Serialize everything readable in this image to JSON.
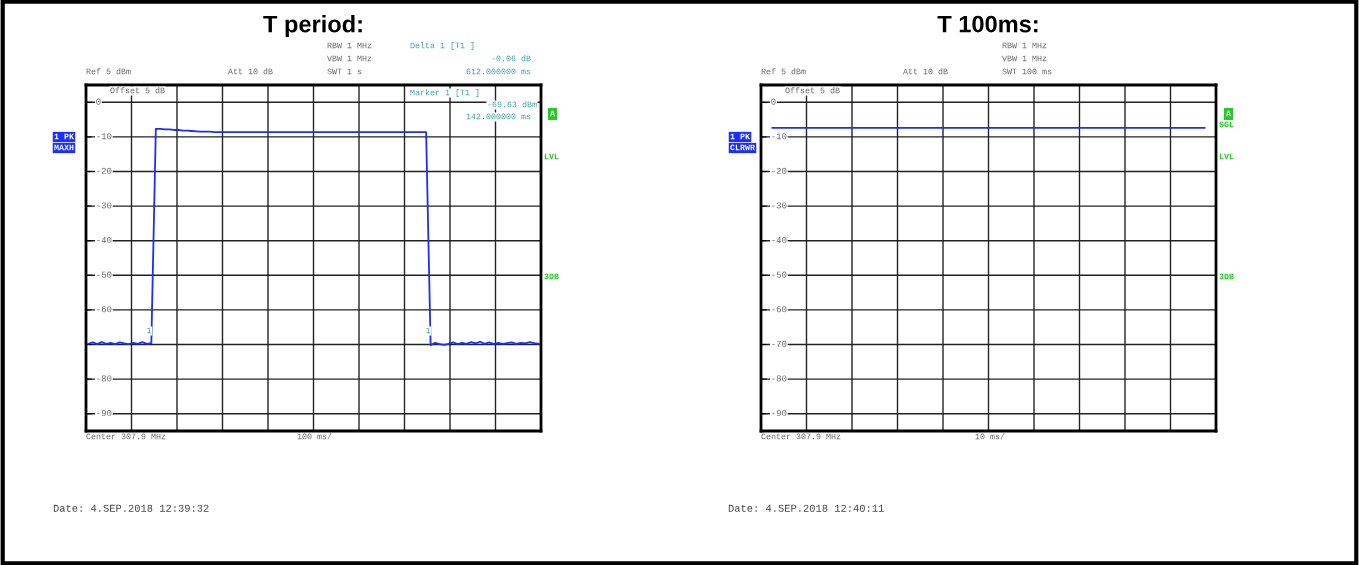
{
  "chart_data": [
    {
      "type": "line",
      "title": "T period:",
      "categories": [
        null,
        null,
        null,
        null,
        null,
        null,
        null,
        null,
        null,
        null,
        null,
        null,
        null,
        null,
        null,
        null,
        null,
        null,
        null,
        null,
        null,
        null,
        null,
        null,
        null,
        null,
        null,
        null,
        null,
        null,
        null,
        null,
        null,
        null,
        null,
        null,
        null,
        null,
        null,
        null,
        null,
        null,
        null,
        null,
        null,
        null,
        null,
        null,
        null,
        null,
        null,
        null,
        null,
        null,
        null,
        null,
        null,
        null,
        null,
        null,
        null,
        null,
        null,
        null,
        null,
        null,
        null,
        null,
        null,
        null,
        null,
        null,
        null,
        null,
        null,
        null,
        null,
        null,
        null,
        null,
        null,
        null,
        null,
        null,
        null,
        null,
        null,
        null,
        null,
        null,
        null,
        null,
        null,
        null,
        null,
        null,
        null,
        null,
        null,
        null,
        null
      ],
      "ylim": [
        -95,
        5
      ],
      "yticks": [
        0,
        -10,
        -20,
        -30,
        -40,
        -50,
        -60,
        {
          "value": -70,
          "label": null
        },
        -80,
        -90
      ],
      "grid": true,
      "marker": "none",
      "line_style": "solid",
      "series": [
        {
          "color": "#1a2eff",
          "values": [
            -69.8,
            -69.4,
            -69.9,
            -69.3,
            -69.8,
            -69.5,
            -69.9,
            -69.4,
            -69.7,
            -69.9,
            -69.5,
            -69.8,
            -69.3,
            -69.8,
            -69.6,
            -7.7,
            -7.7,
            -7.8,
            -7.8,
            -8.0,
            -8.0,
            -8.2,
            -8.2,
            -8.3,
            -8.4,
            -8.5,
            -8.5,
            -8.5,
            -8.6,
            -8.6,
            -8.6,
            -8.6,
            -8.6,
            -8.6,
            -8.6,
            -8.6,
            -8.6,
            -8.6,
            -8.6,
            -8.6,
            -8.6,
            -8.6,
            -8.6,
            -8.6,
            -8.6,
            -8.6,
            -8.6,
            -8.6,
            -8.6,
            -8.6,
            -8.6,
            -8.6,
            -8.6,
            -8.6,
            -8.6,
            -8.6,
            -8.6,
            -8.6,
            -8.6,
            -8.6,
            -8.6,
            -8.6,
            -8.6,
            -8.6,
            -8.6,
            -8.6,
            -8.6,
            -8.6,
            -8.6,
            -8.6,
            -8.6,
            -8.6,
            -8.6,
            -8.6,
            -8.6,
            -8.6,
            -70.2,
            -69.5,
            -69.9,
            -70.1,
            -69.8,
            -69.4,
            -69.9,
            -69.5,
            -69.8,
            -69.3,
            -69.7,
            -69.2,
            -69.8,
            -69.4,
            -69.9,
            -69.5,
            -69.8,
            -69.6,
            -69.4,
            -69.8,
            -69.5,
            -69.7,
            -69.3,
            -69.6,
            -69.8
          ]
        }
      ],
      "annotations": [
        "RBW 1 MHz",
        "VBW 1 MHz",
        "SWT 1 s",
        "Ref 5 dBm",
        "Att 10 dB",
        "Offset 5 dB",
        "Delta 1 [T1 ]",
        "-0.06 dB",
        "612.000000 ms",
        "Marker 1 [T1 ]",
        "-69.63 dBm",
        "142.000000 ms",
        "1 PK",
        "MAXH",
        "A",
        "LVL",
        "3DB",
        "Center 307.9 MHz",
        "100 ms/",
        "Date: 4.SEP.2018 12:39:32",
        "1",
        "1"
      ]
    },
    {
      "type": "line",
      "title": "T 100ms:",
      "categories": [
        null,
        null,
        null,
        null,
        null,
        null,
        null,
        null,
        null,
        null,
        null,
        null,
        null,
        null,
        null,
        null,
        null,
        null,
        null,
        null
      ],
      "ylim": [
        -95,
        5
      ],
      "yticks": [
        0,
        -10,
        -20,
        -30,
        -40,
        -50,
        -60,
        -70,
        -80,
        -90
      ],
      "grid": true,
      "marker": "none",
      "line_style": "solid",
      "series": [
        {
          "color": "#1a2eff",
          "values": [
            -7.4,
            -7.4,
            -7.4,
            -7.4,
            -7.4,
            -7.4,
            -7.4,
            -7.4,
            -7.4,
            -7.4,
            -7.4,
            -7.4,
            -7.4,
            -7.4,
            -7.4,
            -7.4,
            -7.4,
            -7.4,
            -7.4,
            -7.4
          ]
        }
      ],
      "annotations": [
        "RBW 1 MHz",
        "VBW 1 MHz",
        "SWT 100 ms",
        "Ref 5 dBm",
        "Att 10 dB",
        "Offset 5 dB",
        "1 PK",
        "CLRWR",
        "A",
        "SGL",
        "LVL",
        "3DB",
        "Center 307.9 MHz",
        "10 ms/",
        "Date: 4.SEP.2018 12:40:11"
      ]
    }
  ]
}
